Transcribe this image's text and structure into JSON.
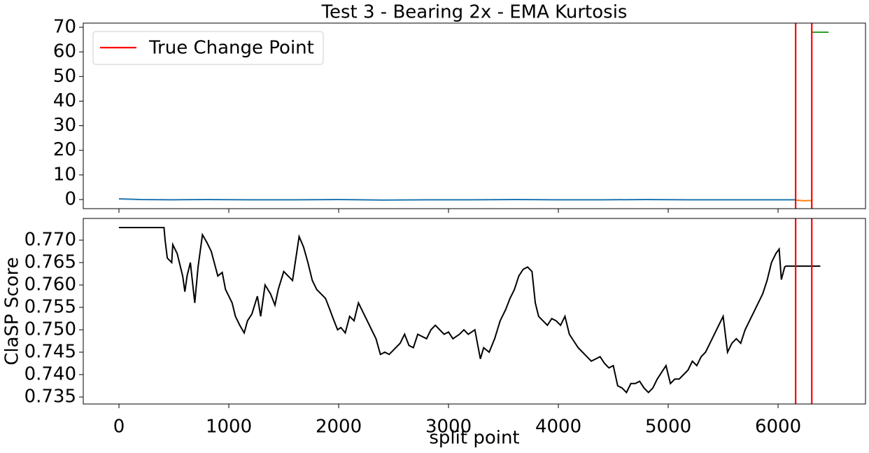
{
  "chart_data": [
    {
      "type": "line",
      "title": "Test 3 - Bearing 2x - EMA Kurtosis",
      "xlim": [
        -325,
        6796
      ],
      "ylim": [
        -3.7,
        71.7
      ],
      "yticks": [
        0,
        10,
        20,
        30,
        40,
        50,
        60,
        70
      ],
      "series": [
        {
          "color": "#1f77b4",
          "x": [
            0,
            200,
            500,
            800,
            1200,
            1600,
            2000,
            2400,
            2800,
            3200,
            3600,
            4000,
            4400,
            4800,
            5200,
            5600,
            6000,
            6160
          ],
          "values": [
            0.3,
            0.0,
            -0.1,
            0.0,
            -0.1,
            -0.1,
            0.0,
            -0.2,
            -0.1,
            -0.1,
            0.0,
            -0.1,
            -0.1,
            0.0,
            -0.1,
            -0.1,
            -0.1,
            -0.1
          ]
        },
        {
          "color": "#ff7f0e",
          "x": [
            6160,
            6230,
            6307
          ],
          "values": [
            -0.2,
            -0.5,
            -0.4
          ]
        },
        {
          "color": "#2ca02c",
          "x": [
            6307,
            6460
          ],
          "values": [
            68,
            68
          ]
        }
      ],
      "change_points": [
        6160,
        6307
      ],
      "change_point_color": "#ff0000",
      "legend": {
        "label": "True Change Point",
        "loc": "upper left"
      }
    },
    {
      "type": "line",
      "xlabel": "split point",
      "ylabel": "ClaSP Score",
      "xlim": [
        -325,
        6796
      ],
      "ylim": [
        0.73344,
        0.77484
      ],
      "xticks": [
        0,
        1000,
        2000,
        3000,
        4000,
        5000,
        6000
      ],
      "yticks": [
        0.735,
        {
          "value": 0.74,
          "label": "0.740"
        },
        0.745,
        {
          "value": 0.75,
          "label": "0.750"
        },
        0.755,
        {
          "value": 0.76,
          "label": "0.760"
        },
        0.765,
        {
          "value": 0.77,
          "label": "0.770"
        }
      ],
      "series": [
        {
          "color": "#000000",
          "x": [
            0,
            410,
            420,
            440,
            480,
            490,
            530,
            580,
            600,
            620,
            650,
            690,
            720,
            760,
            800,
            840,
            900,
            940,
            970,
            1000,
            1030,
            1060,
            1100,
            1140,
            1170,
            1210,
            1260,
            1290,
            1330,
            1380,
            1420,
            1450,
            1500,
            1540,
            1580,
            1640,
            1680,
            1720,
            1760,
            1800,
            1840,
            1880,
            1920,
            1950,
            1990,
            2020,
            2060,
            2100,
            2140,
            2180,
            2220,
            2260,
            2300,
            2340,
            2380,
            2420,
            2460,
            2520,
            2560,
            2600,
            2640,
            2680,
            2720,
            2760,
            2800,
            2840,
            2880,
            2920,
            2960,
            3000,
            3040,
            3100,
            3140,
            3180,
            3240,
            3290,
            3320,
            3370,
            3420,
            3470,
            3520,
            3560,
            3600,
            3640,
            3680,
            3720,
            3760,
            3790,
            3820,
            3860,
            3900,
            3940,
            3980,
            4020,
            4060,
            4100,
            4140,
            4180,
            4220,
            4260,
            4300,
            4340,
            4380,
            4420,
            4460,
            4500,
            4540,
            4580,
            4620,
            4660,
            4700,
            4740,
            4780,
            4820,
            4860,
            4900,
            4940,
            4980,
            5020,
            5060,
            5100,
            5140,
            5180,
            5220,
            5260,
            5300,
            5340,
            5380,
            5420,
            5460,
            5500,
            5540,
            5580,
            5620,
            5660,
            5700,
            5740,
            5780,
            5820,
            5860,
            5900,
            5940,
            5980,
            6010,
            6030,
            6060,
            6070,
            6385
          ],
          "values": [
            0.7728,
            0.7728,
            0.77,
            0.766,
            0.765,
            0.769,
            0.767,
            0.762,
            0.7585,
            0.762,
            0.765,
            0.756,
            0.764,
            0.7712,
            0.7695,
            0.7675,
            0.762,
            0.7628,
            0.759,
            0.7575,
            0.756,
            0.753,
            0.751,
            0.7493,
            0.752,
            0.7535,
            0.7575,
            0.753,
            0.76,
            0.758,
            0.7555,
            0.759,
            0.763,
            0.762,
            0.761,
            0.7708,
            0.7685,
            0.765,
            0.761,
            0.759,
            0.758,
            0.757,
            0.7545,
            0.7525,
            0.75,
            0.7505,
            0.7493,
            0.753,
            0.752,
            0.756,
            0.754,
            0.752,
            0.75,
            0.748,
            0.7445,
            0.745,
            0.7445,
            0.746,
            0.747,
            0.749,
            0.7465,
            0.746,
            0.749,
            0.7485,
            0.748,
            0.75,
            0.751,
            0.75,
            0.749,
            0.7495,
            0.748,
            0.749,
            0.75,
            0.749,
            0.75,
            0.7435,
            0.746,
            0.745,
            0.748,
            0.752,
            0.7545,
            0.757,
            0.759,
            0.762,
            0.7635,
            0.764,
            0.763,
            0.756,
            0.753,
            0.752,
            0.751,
            0.7525,
            0.752,
            0.751,
            0.753,
            0.749,
            0.7475,
            0.746,
            0.745,
            0.744,
            0.743,
            0.7435,
            0.744,
            0.7425,
            0.7415,
            0.742,
            0.7375,
            0.737,
            0.736,
            0.738,
            0.738,
            0.7385,
            0.737,
            0.736,
            0.737,
            0.739,
            0.7405,
            0.742,
            0.738,
            0.739,
            0.739,
            0.74,
            0.741,
            0.743,
            0.742,
            0.744,
            0.745,
            0.747,
            0.749,
            0.751,
            0.753,
            0.745,
            0.747,
            0.748,
            0.747,
            0.75,
            0.752,
            0.754,
            0.756,
            0.758,
            0.761,
            0.765,
            0.767,
            0.768,
            0.7612,
            0.764,
            0.7642,
            0.7642
          ]
        }
      ],
      "change_points": [
        6160,
        6307
      ],
      "change_point_color": "#ff0000"
    }
  ]
}
